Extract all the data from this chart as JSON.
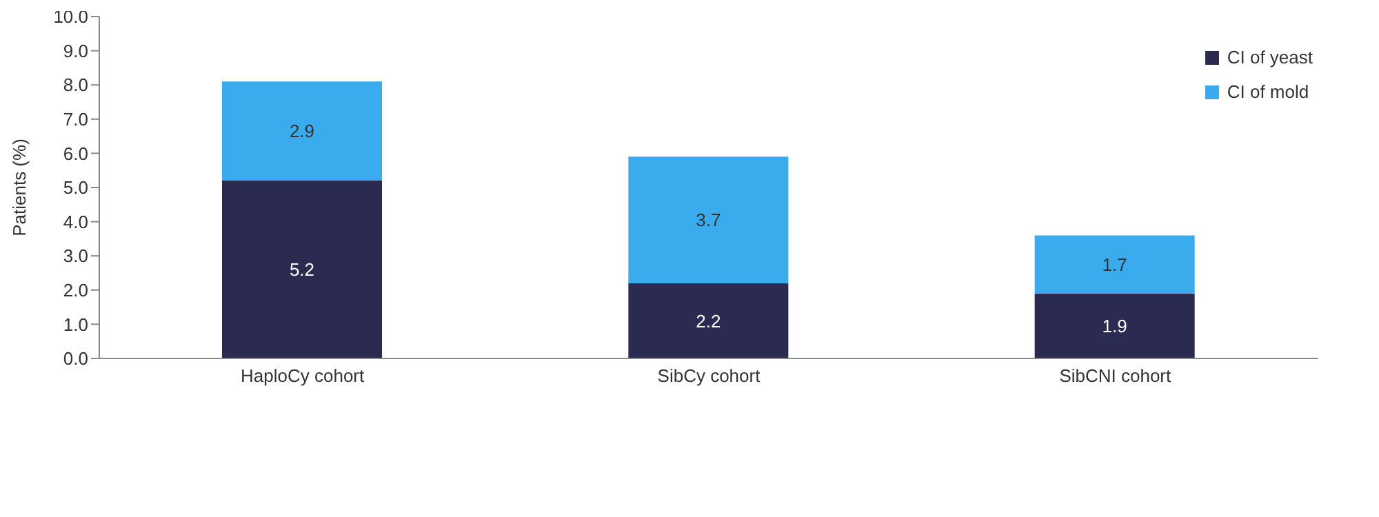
{
  "chart_data": {
    "type": "bar",
    "stacked": true,
    "ylabel": "Patients (%)",
    "categories": [
      "HaploCy cohort",
      "SibCy cohort",
      "SibCNI cohort"
    ],
    "series": [
      {
        "name": "CI of yeast",
        "color": "#2b2a50",
        "values": [
          5.2,
          2.2,
          1.9
        ]
      },
      {
        "name": "CI of mold",
        "color": "#3aabec",
        "values": [
          2.9,
          3.7,
          1.7
        ]
      }
    ],
    "ylim": [
      0,
      10
    ],
    "yticks": [
      {
        "value": 0,
        "label": "0.0"
      },
      {
        "value": 1,
        "label": "1.0"
      },
      {
        "value": 2,
        "label": "2.0"
      },
      {
        "value": 3,
        "label": "3.0"
      },
      {
        "value": 4,
        "label": "4.0"
      },
      {
        "value": 5,
        "label": "5.0"
      },
      {
        "value": 6,
        "label": "6.0"
      },
      {
        "value": 7,
        "label": "7.0"
      },
      {
        "value": 8,
        "label": "8.0"
      },
      {
        "value": 9,
        "label": "9.0"
      },
      {
        "value": 10,
        "label": "10.0"
      }
    ],
    "grid": false,
    "legend": "top right",
    "data_labels": true
  }
}
